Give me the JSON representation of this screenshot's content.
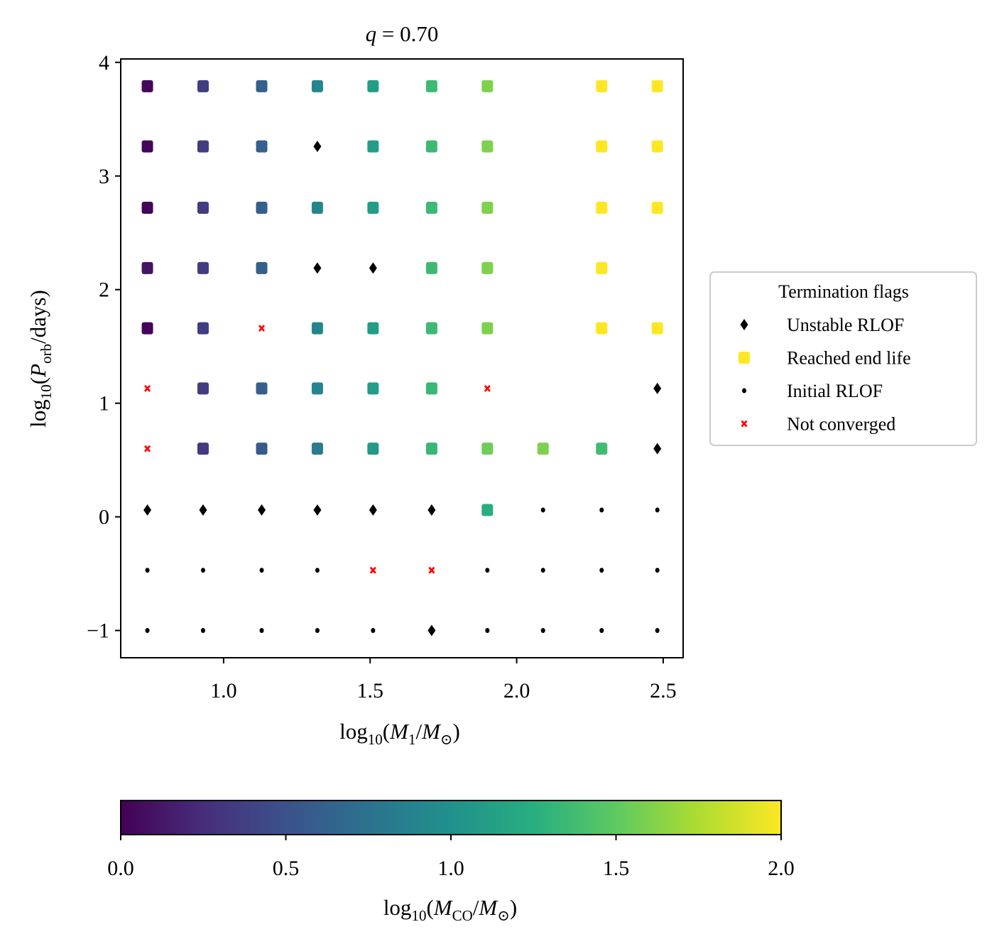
{
  "chart_data": {
    "type": "scatter",
    "title": {
      "var": "q",
      "eq": " = ",
      "val": "0.70"
    },
    "xlabel": {
      "fn": "log",
      "base": "10",
      "open": "(",
      "a": "M",
      "a_sub": "1",
      "slash": "/",
      "b": "M",
      "b_sub": "⊙",
      "close": ")"
    },
    "ylabel": {
      "fn": "log",
      "base": "10",
      "open": "(",
      "a": "P",
      "a_sub": "orb",
      "rest": "/days)"
    },
    "xlim": [
      0.649,
      2.568
    ],
    "ylim": [
      -1.24,
      4.03
    ],
    "xticks": [
      "1.0",
      "1.5",
      "2.0",
      "2.5"
    ],
    "yticks": [
      "−1",
      "0",
      "1",
      "2",
      "3",
      "4"
    ],
    "grid": false,
    "colorbar": {
      "colormap": "viridis",
      "range": [
        0.0,
        2.0
      ],
      "ticks": [
        "0.0",
        "0.5",
        "1.0",
        "1.5",
        "2.0"
      ],
      "label": {
        "fn": "log",
        "base": "10",
        "open": "(",
        "a": "M",
        "a_sub": "CO",
        "slash": "/",
        "b": "M",
        "b_sub": "⊙",
        "close": ")"
      },
      "placement": "bottom"
    },
    "legend": {
      "title": "Termination flags",
      "placement": "right-outside",
      "entries": [
        {
          "key": "U",
          "label": "Unstable RLOF",
          "marker": "diamond",
          "color": "#000000"
        },
        {
          "key": "S",
          "label": "Reached end life",
          "marker": "square",
          "color": "#fde725"
        },
        {
          "key": "I",
          "label": "Initial RLOF",
          "marker": "dot",
          "color": "#000000"
        },
        {
          "key": "N",
          "label": "Not converged",
          "marker": "x",
          "color": "#ff0000"
        }
      ]
    },
    "x_values": [
      0.74,
      0.93,
      1.13,
      1.32,
      1.51,
      1.71,
      1.9,
      2.09,
      2.29,
      2.48
    ],
    "y_values": [
      3.79,
      3.26,
      2.72,
      2.19,
      1.66,
      1.13,
      0.6,
      0.06,
      -0.47,
      -1.0
    ],
    "grid_flags": [
      [
        0.03,
        0.35,
        0.6,
        0.9,
        1.1,
        1.35,
        1.6,
        null,
        2.0,
        2.0
      ],
      [
        0.03,
        0.35,
        0.6,
        "U",
        1.1,
        1.35,
        1.6,
        null,
        2.0,
        2.0
      ],
      [
        0.03,
        0.35,
        0.6,
        0.9,
        1.1,
        1.35,
        1.6,
        null,
        2.0,
        2.0
      ],
      [
        0.1,
        0.35,
        0.6,
        "U",
        "U",
        1.35,
        1.6,
        null,
        2.0,
        null
      ],
      [
        0.03,
        0.35,
        "N",
        0.9,
        1.1,
        1.35,
        1.6,
        null,
        2.0,
        2.0
      ],
      [
        "N",
        0.35,
        0.6,
        0.9,
        1.1,
        1.33,
        "N",
        null,
        null,
        "U"
      ],
      [
        "N",
        0.33,
        0.57,
        0.82,
        1.08,
        1.32,
        1.55,
        1.6,
        1.37,
        "U"
      ],
      [
        "U",
        "U",
        "U",
        "U",
        "U",
        "U",
        1.25,
        "I",
        "I",
        "I"
      ],
      [
        "I",
        "I",
        "I",
        "I",
        "N",
        "N",
        "I",
        "I",
        "I",
        "I"
      ],
      [
        "I",
        "I",
        "I",
        "I",
        "I",
        "U",
        "I",
        "I",
        "I",
        "I"
      ]
    ]
  }
}
